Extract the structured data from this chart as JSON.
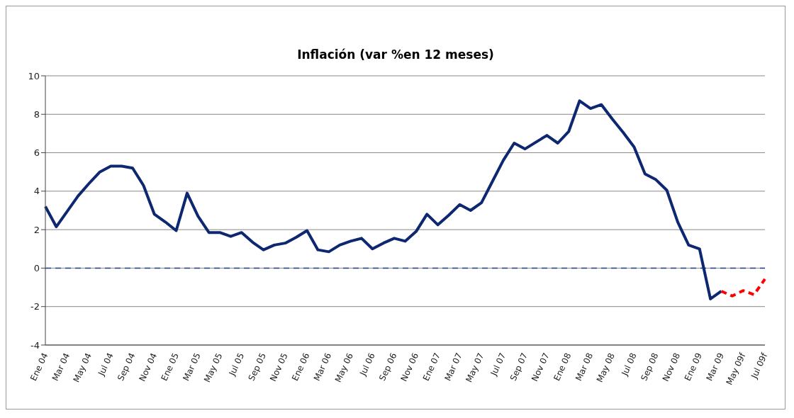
{
  "chart_data": {
    "type": "line",
    "title": "Inflación (var %en 12 meses)",
    "categories": [
      "Ene 04",
      null,
      "Mar 04",
      null,
      "May 04",
      null,
      "Jul 04",
      null,
      "Sep 04",
      null,
      "Nov 04",
      null,
      "Ene 05",
      null,
      "Mar 05",
      null,
      "May 05",
      null,
      "Jul 05",
      null,
      "Sep 05",
      null,
      "Nov 05",
      null,
      "Ene 06",
      null,
      "Mar 06",
      null,
      "May 06",
      null,
      "Jul 06",
      null,
      "Sep 06",
      null,
      "Nov 06",
      null,
      "Ene 07",
      null,
      "Mar 07",
      null,
      "May 07",
      null,
      "Jul 07",
      null,
      "Sep 07",
      null,
      "Nov 07",
      null,
      "Ene 08",
      null,
      "Mar 08",
      null,
      "May 08",
      null,
      "Jul 08",
      null,
      "Sep 08",
      null,
      "Nov 08",
      null,
      "Ene 09",
      null,
      "Mar 09",
      null,
      "May 09f",
      null,
      "Jul 09f"
    ],
    "series": [
      {
        "color": "#0d2870",
        "line_style": "solid",
        "values": [
          3.2,
          2.15,
          2.95,
          3.75,
          4.4,
          5.0,
          5.3,
          5.3,
          5.2,
          4.3,
          2.8,
          2.4,
          1.95,
          3.9,
          2.7,
          1.85,
          1.85,
          1.65,
          1.85,
          1.35,
          0.95,
          1.2,
          1.3,
          1.6,
          1.95,
          0.95,
          0.85,
          1.2,
          1.4,
          1.55,
          1.0,
          1.3,
          1.55,
          1.4,
          1.9,
          2.8,
          2.25,
          2.75,
          3.3,
          3.0,
          3.4,
          4.5,
          5.6,
          6.5,
          6.2,
          6.55,
          6.9,
          6.5,
          7.1,
          8.7,
          8.3,
          8.5,
          7.75,
          7.05,
          6.3,
          4.9,
          4.6,
          4.05,
          2.4,
          1.2,
          1.0,
          -1.6,
          -1.2,
          null,
          null,
          null,
          null
        ]
      },
      {
        "color": "#ff0000",
        "line_style": "dashed",
        "values": [
          null,
          null,
          null,
          null,
          null,
          null,
          null,
          null,
          null,
          null,
          null,
          null,
          null,
          null,
          null,
          null,
          null,
          null,
          null,
          null,
          null,
          null,
          null,
          null,
          null,
          null,
          null,
          null,
          null,
          null,
          null,
          null,
          null,
          null,
          null,
          null,
          null,
          null,
          null,
          null,
          null,
          null,
          null,
          null,
          null,
          null,
          null,
          null,
          null,
          null,
          null,
          null,
          null,
          null,
          null,
          null,
          null,
          null,
          null,
          null,
          null,
          null,
          -1.2,
          -1.45,
          -1.17,
          -1.38,
          -0.57
        ]
      }
    ],
    "ylim": [
      -4,
      10
    ],
    "yticks": [
      -4,
      -2,
      0,
      2,
      4,
      6,
      8,
      10
    ],
    "grid": "y",
    "legend": false,
    "marker": "none",
    "ref_lines": [
      {
        "axis": "y",
        "value": 0,
        "color": "#1f3a93",
        "line_style": "dashed"
      }
    ]
  }
}
